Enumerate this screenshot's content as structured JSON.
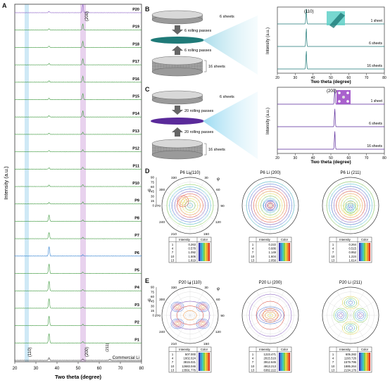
{
  "panels": {
    "A": {
      "label": "A",
      "ylabel": "Intensity (a.u.)",
      "xlabel": "Two theta (degree)",
      "x_ticks": [
        "20",
        "30",
        "40",
        "50",
        "60",
        "70",
        "80"
      ],
      "peak_110": "(110)",
      "peak_200": "(200)",
      "peak_211": "(211)",
      "bottom_label": "Commercial Li",
      "traces": [
        "P20",
        "P19",
        "P18",
        "P17",
        "P16",
        "P15",
        "P14",
        "P13",
        "P12",
        "P11",
        "P10",
        "P9",
        "P8",
        "P7",
        "P6",
        "P5",
        "P4",
        "P3",
        "P2",
        "P1"
      ],
      "colors": {
        "p20": "#8b5fc6",
        "p6": "#2f7fd0",
        "green": "#3f9a3f",
        "bottom": "#333333",
        "band_110": "#cfe9f6",
        "band_200": "#e8d2ee"
      }
    },
    "B": {
      "label": "B",
      "top_sheets": "6 sheets",
      "passes_top": "6 rolling passes",
      "passes_bottom": "6 rolling passes",
      "bottom_sheets": "16 sheets",
      "plot_peak": "(110)",
      "plot_ylabel": "Intensity (a.u.)",
      "plot_xlabel": "Two theta (degree)",
      "plot_ticks": [
        "20",
        "30",
        "40",
        "50",
        "60",
        "70",
        "80"
      ],
      "traces": [
        "1 sheet",
        "6 sheets",
        "16 sheets"
      ],
      "color": "#1f7a78"
    },
    "C": {
      "label": "C",
      "top_sheets": "6 sheets",
      "passes_top": "20 rolling passes",
      "passes_bottom": "20 rolling passes",
      "bottom_sheets": "16 sheets",
      "plot_peak": "(200)",
      "plot_ylabel": "Intensity (a.u.)",
      "plot_xlabel": "Two theta (degree)",
      "plot_ticks": [
        "20",
        "30",
        "40",
        "50",
        "60",
        "70",
        "80"
      ],
      "traces": [
        "1 sheet",
        "6 sheets",
        "16 sheets"
      ],
      "color": "#5a2a9a"
    },
    "D": {
      "label": "D",
      "titles": [
        "P6 Li (110)",
        "P6 Li (200)",
        "P6 Li (211)"
      ],
      "psi_label": "ψ",
      "phi_label": "φ",
      "psi_ticks": [
        "90",
        "75",
        "60",
        "45",
        "30",
        "15",
        "0"
      ],
      "angle_ticks": [
        "0",
        "30",
        "60",
        "90",
        "120",
        "150",
        "180",
        "210",
        "240",
        "270",
        "300",
        "330"
      ],
      "legend_headers": [
        "Intensity",
        "Color"
      ],
      "legend1": [
        [
          "1",
          "0.263"
        ],
        [
          "4",
          "0.578"
        ],
        [
          "7",
          "1.092"
        ],
        [
          "10",
          "1.506"
        ],
        [
          "13",
          "1.819"
        ]
      ],
      "legend2": [
        [
          "1",
          "0.222"
        ],
        [
          "4",
          "0.686"
        ],
        [
          "7",
          "1.149"
        ],
        [
          "10",
          "1.604"
        ],
        [
          "13",
          "2.056"
        ]
      ],
      "legend3": [
        [
          "1",
          "0.264"
        ],
        [
          "4",
          "0.515"
        ],
        [
          "7",
          "0.952"
        ],
        [
          "10",
          "1.224"
        ],
        [
          "13",
          "1.614"
        ]
      ]
    },
    "E": {
      "label": "E",
      "titles": [
        "P20 Li (110)",
        "P20 Li (200)",
        "P20 Li (211)"
      ],
      "psi_label": "ψ",
      "phi_label": "φ",
      "psi_ticks": [
        "90",
        "75",
        "60",
        "45",
        "30",
        "15",
        "0"
      ],
      "angle_ticks": [
        "0",
        "30",
        "60",
        "90",
        "120",
        "150",
        "180",
        "210",
        "240",
        "270",
        "300",
        "330"
      ],
      "legend_headers": [
        "Intensity",
        "Color"
      ],
      "legend1": [
        [
          "1",
          "507.000"
        ],
        [
          "4",
          "1602.024"
        ],
        [
          "7",
          "3815.021"
        ],
        [
          "10",
          "12683.046"
        ],
        [
          "13",
          "13591.776"
        ]
      ],
      "legend2": [
        [
          "1",
          "1223.471"
        ],
        [
          "4",
          "2815.516"
        ],
        [
          "7",
          "3912.645"
        ],
        [
          "10",
          "4913.213"
        ],
        [
          "13",
          "6382.222"
        ]
      ],
      "legend3": [
        [
          "1",
          "605.282"
        ],
        [
          "4",
          "1193.726"
        ],
        [
          "7",
          "1579.795"
        ],
        [
          "10",
          "1885.264"
        ],
        [
          "13",
          "2134.176"
        ]
      ]
    }
  }
}
